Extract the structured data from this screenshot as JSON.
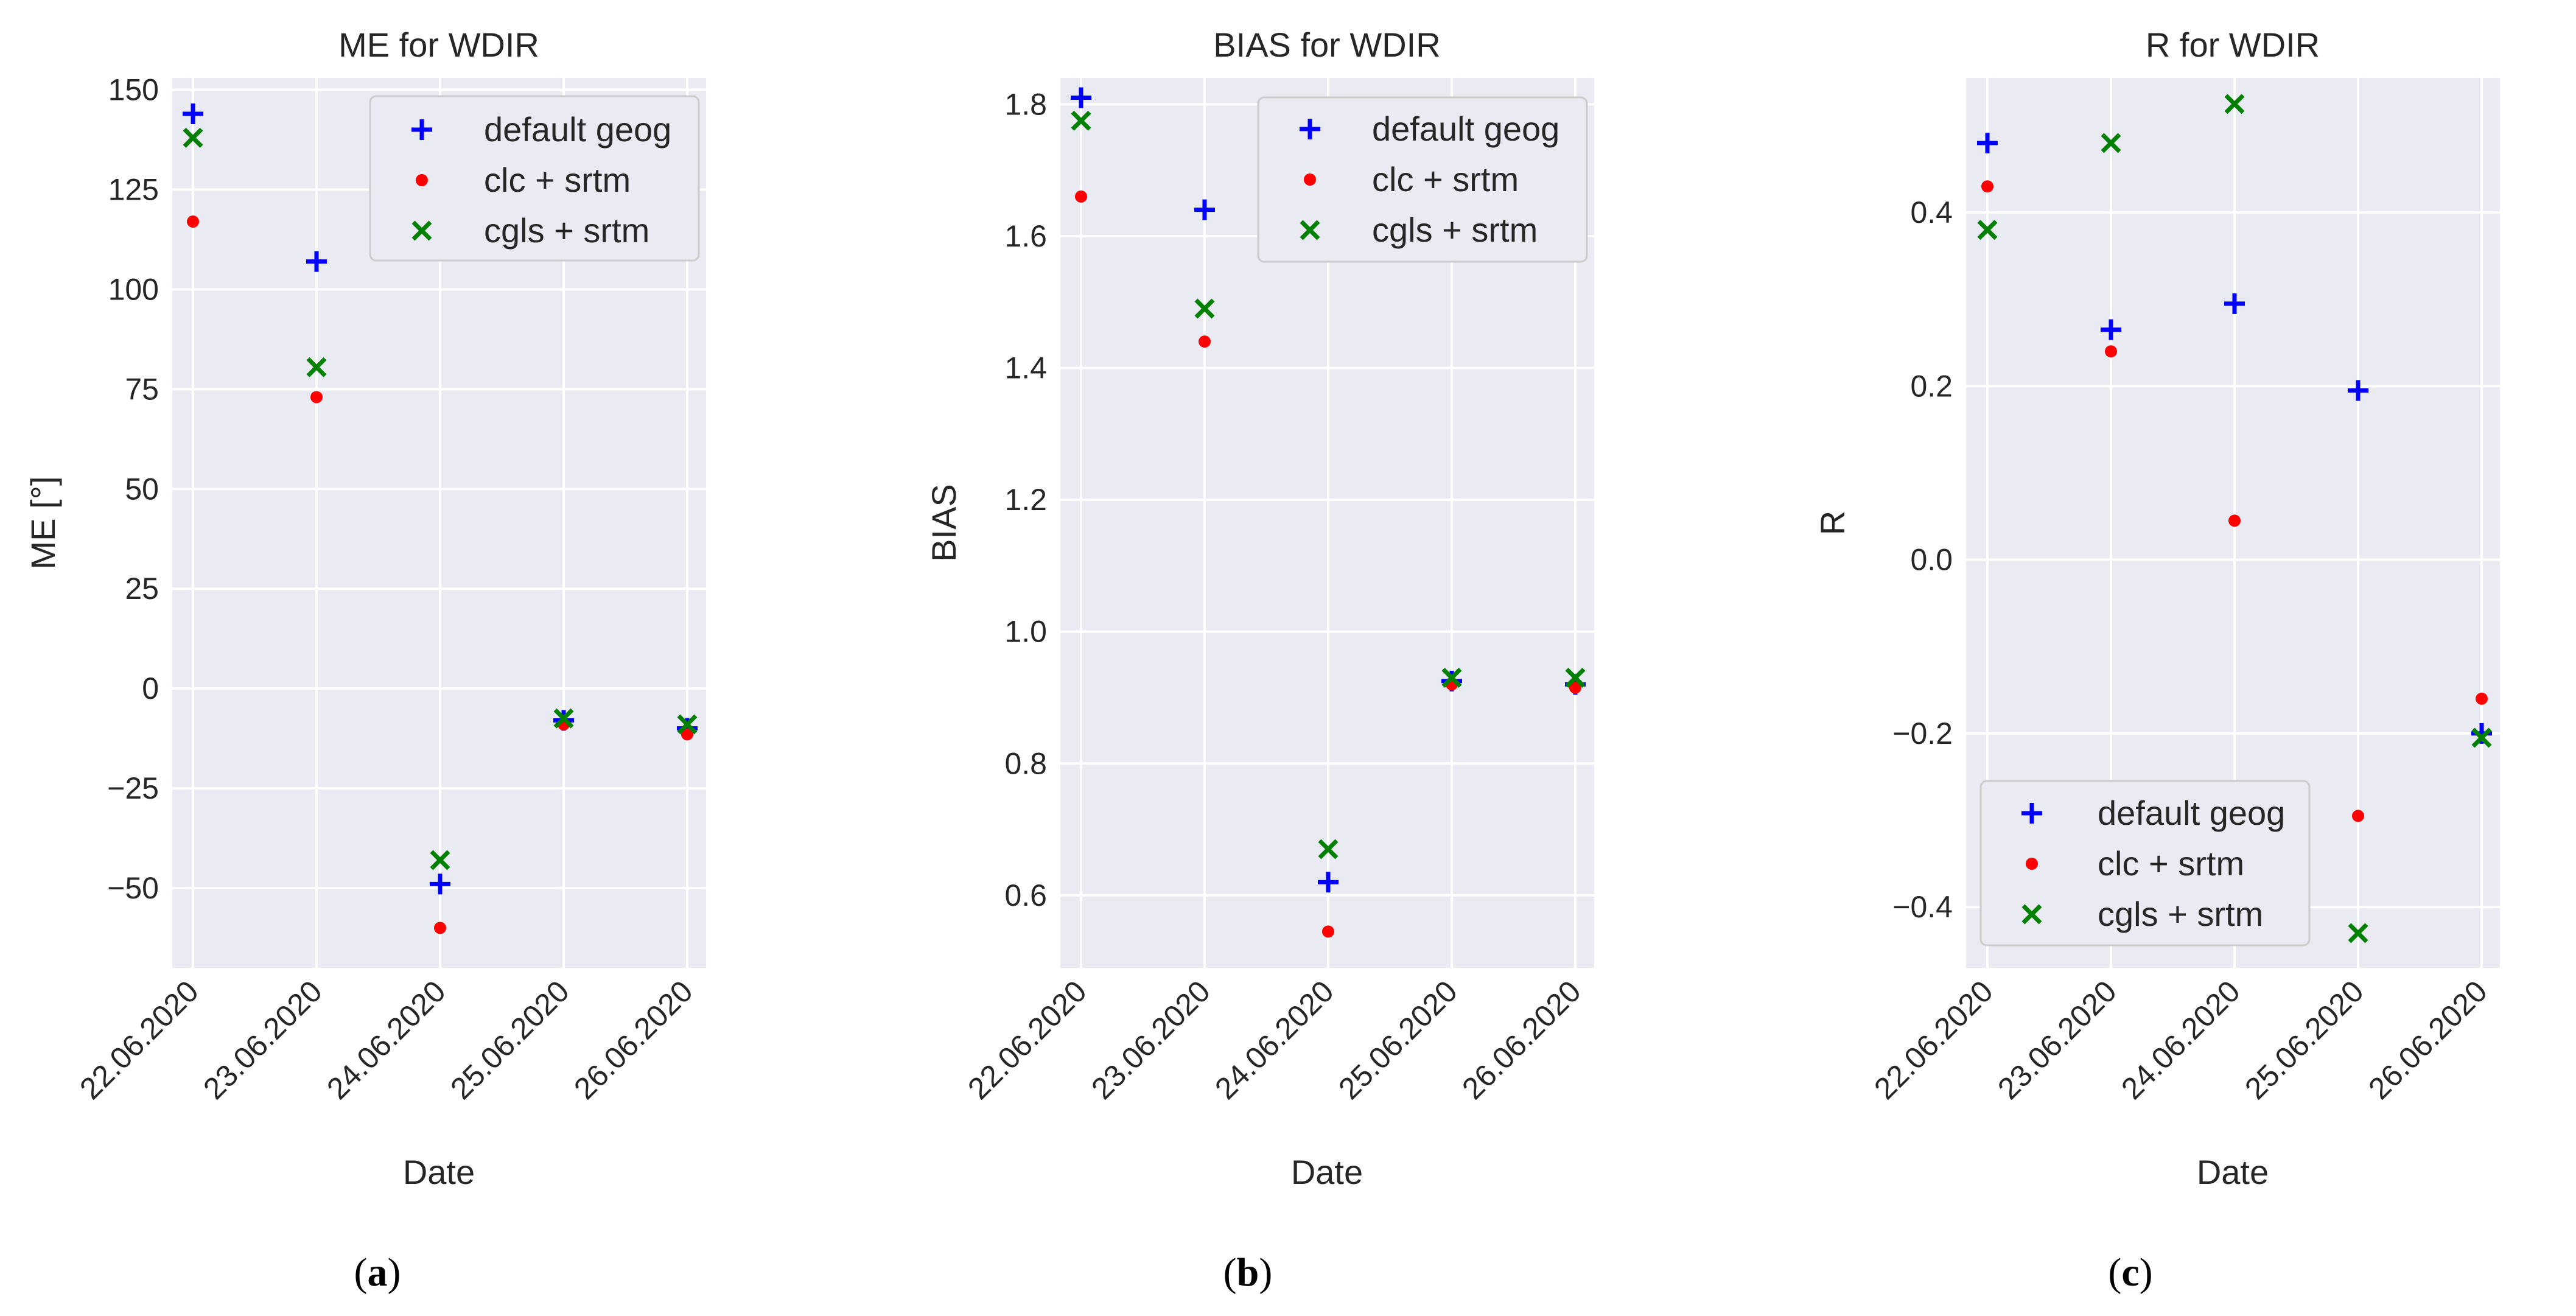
{
  "colors": {
    "plot_bg": "#eaeaf2",
    "grid": "#ffffff",
    "legend_bg": "#eaeaf2",
    "legend_border": "#cccccc"
  },
  "series_styles": [
    {
      "name": "default geog",
      "marker": "plus",
      "color": "#0000ff"
    },
    {
      "name": "clc + srtm",
      "marker": "dot",
      "color": "#ff0000"
    },
    {
      "name": "cgls + srtm",
      "marker": "x",
      "color": "#008000"
    }
  ],
  "captions": [
    {
      "open": "(",
      "letter": "a",
      "close": ")"
    },
    {
      "open": "(",
      "letter": "b",
      "close": ")"
    },
    {
      "open": "(",
      "letter": "c",
      "close": ")"
    }
  ],
  "chart_data": [
    {
      "type": "scatter",
      "title": "ME for WDIR",
      "xlabel": "Date",
      "ylabel": "ME [°]",
      "categories": [
        "22.06.2020",
        "23.06.2020",
        "24.06.2020",
        "25.06.2020",
        "26.06.2020"
      ],
      "ylim": [
        -70,
        153
      ],
      "yticks": [
        -50,
        -25,
        0,
        25,
        50,
        75,
        100,
        125,
        150
      ],
      "ytick_labels": [
        "−50",
        "−25",
        "0",
        "25",
        "50",
        "75",
        "100",
        "125",
        "150"
      ],
      "legend_position": "top-right",
      "series": [
        {
          "name": "default geog",
          "values": [
            144,
            107,
            -49,
            -8,
            -10
          ]
        },
        {
          "name": "clc + srtm",
          "values": [
            117,
            73,
            -60,
            -9,
            -11.5
          ]
        },
        {
          "name": "cgls + srtm",
          "values": [
            138,
            80.5,
            -43,
            -7.5,
            -9
          ]
        }
      ]
    },
    {
      "type": "scatter",
      "title": "BIAS for WDIR",
      "xlabel": "Date",
      "ylabel": "BIAS",
      "categories": [
        "22.06.2020",
        "23.06.2020",
        "24.06.2020",
        "25.06.2020",
        "26.06.2020"
      ],
      "ylim": [
        0.49,
        1.84
      ],
      "yticks": [
        0.6,
        0.8,
        1.0,
        1.2,
        1.4,
        1.6,
        1.8
      ],
      "ytick_labels": [
        "0.6",
        "0.8",
        "1.0",
        "1.2",
        "1.4",
        "1.6",
        "1.8"
      ],
      "legend_position": "top-right",
      "series": [
        {
          "name": "default geog",
          "values": [
            1.81,
            1.64,
            0.62,
            0.925,
            0.92
          ]
        },
        {
          "name": "clc + srtm",
          "values": [
            1.66,
            1.44,
            0.545,
            0.92,
            0.915
          ]
        },
        {
          "name": "cgls + srtm",
          "values": [
            1.775,
            1.49,
            0.67,
            0.93,
            0.93
          ]
        }
      ]
    },
    {
      "type": "scatter",
      "title": "R for WDIR",
      "xlabel": "Date",
      "ylabel": "R",
      "categories": [
        "22.06.2020",
        "23.06.2020",
        "24.06.2020",
        "25.06.2020",
        "26.06.2020"
      ],
      "ylim": [
        -0.47,
        0.555
      ],
      "yticks": [
        -0.4,
        -0.2,
        0.0,
        0.2,
        0.4
      ],
      "ytick_labels": [
        "−0.4",
        "−0.2",
        "0.0",
        "0.2",
        "0.4"
      ],
      "legend_position": "lower-left",
      "series": [
        {
          "name": "default geog",
          "values": [
            0.48,
            0.265,
            0.295,
            0.195,
            -0.2
          ]
        },
        {
          "name": "clc + srtm",
          "values": [
            0.43,
            0.24,
            0.045,
            -0.295,
            -0.16
          ]
        },
        {
          "name": "cgls + srtm",
          "values": [
            0.38,
            0.48,
            0.525,
            -0.43,
            -0.205
          ]
        }
      ]
    }
  ]
}
